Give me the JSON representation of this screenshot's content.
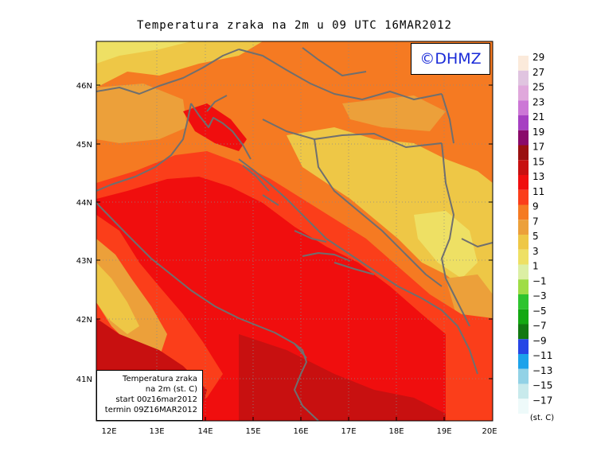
{
  "title": "Temperatura zraka na 2m u 09 UTC 16MAR2012",
  "logo": "©DHMZ",
  "info_box": {
    "line1": "Temperatura zraka",
    "line2": "na 2m (st. C)",
    "line3": "start 00z16mar2012",
    "line4": "termin 09Z16MAR2012"
  },
  "lon_labels": [
    "12E",
    "13E",
    "14E",
    "15E",
    "16E",
    "17E",
    "18E",
    "19E",
    "20E"
  ],
  "lat_labels": [
    "46N",
    "45N",
    "44N",
    "43N",
    "42N",
    "41N"
  ],
  "colorbar": {
    "unit": "(st. C)",
    "levels": [
      "29",
      "27",
      "25",
      "23",
      "21",
      "19",
      "17",
      "15",
      "13",
      "11",
      "9",
      "7",
      "5",
      "3",
      "1",
      "−1",
      "−3",
      "−5",
      "−7",
      "−9",
      "−11",
      "−13",
      "−15",
      "−17"
    ],
    "colors": [
      "#fbeadb",
      "#e0c4e0",
      "#e0a8dc",
      "#cc77d6",
      "#a640c2",
      "#8a0a6a",
      "#9a1010",
      "#c81010",
      "#f00e0e",
      "#fb3e1a",
      "#f57a22",
      "#eca03a",
      "#eec746",
      "#eee064",
      "#dcefa4",
      "#9fdd46",
      "#2ec42e",
      "#14a812",
      "#127812",
      "#2646e6",
      "#1ca2ea",
      "#92d2e6",
      "#c8eaec",
      "#eefafa"
    ]
  },
  "colors": {
    "sea": "#f00e0e",
    "sea_warm": "#c81010",
    "coast_band": "#fb3e1a",
    "inland": "#f57a22",
    "hills": "#eca03a",
    "mountains": "#eec746",
    "peaks": "#eee064",
    "coastline": "#6f6f6f"
  }
}
